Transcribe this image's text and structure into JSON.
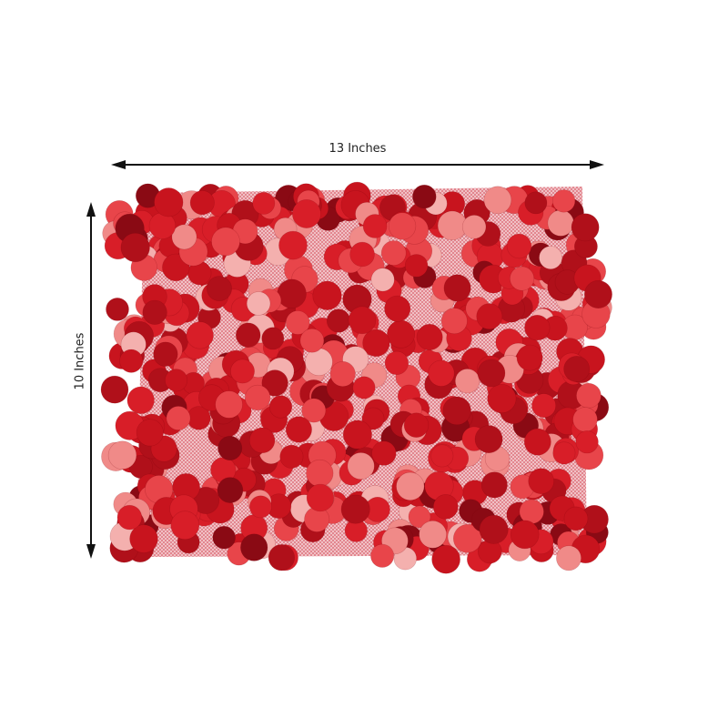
{
  "product": {
    "width_label": "13 Inches",
    "height_label": "10 Inches"
  },
  "colors": {
    "mesh": "#e8a0a8",
    "sequin_palette": [
      "#d81e28",
      "#c8141e",
      "#e8454a",
      "#f08a88",
      "#8a0a14",
      "#b0101a",
      "#f4b0ae"
    ],
    "arrow": "#111111"
  }
}
